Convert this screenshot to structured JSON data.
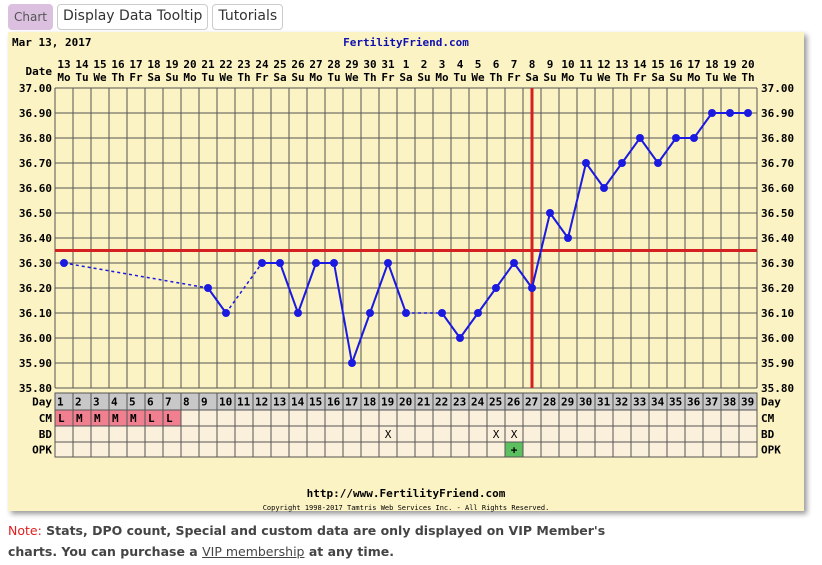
{
  "tabs": [
    {
      "label": "Chart",
      "active": true
    },
    {
      "label": "Display Data Tooltip"
    },
    {
      "label": "Tutorials"
    }
  ],
  "chart_header": {
    "date": "Mar 13, 2017",
    "site": "FertilityFriend.com",
    "date_label": "Date",
    "day_label": "Day",
    "cm_label": "CM",
    "bd_label": "BD",
    "opk_label": "OPK"
  },
  "footer": {
    "url": "http://www.FertilityFriend.com",
    "copyright": "Copyright 1998-2017 Tamtris Web Services Inc. - All Rights Reserved."
  },
  "note": {
    "prefix": "Note:",
    "text1": " Stats, DPO count, Special and custom data are only displayed on VIP Member's charts. You can purchase a ",
    "link": "VIP membership",
    "text2": " at any time."
  },
  "colors": {
    "line": "#1a1ae0",
    "coverline": "#d42020",
    "cm": "#f08090",
    "opk": "#5cc060",
    "panel": "#fcf3c4"
  },
  "chart_data": {
    "type": "line",
    "title": "FertilityFriend.com",
    "ylim": [
      35.8,
      37.0
    ],
    "yticks": [
      "37.00",
      "36.90",
      "36.80",
      "36.70",
      "36.60",
      "36.50",
      "36.40",
      "36.30",
      "36.20",
      "36.10",
      "36.00",
      "35.90",
      "35.80"
    ],
    "dates": [
      "13",
      "14",
      "15",
      "16",
      "17",
      "18",
      "19",
      "20",
      "21",
      "22",
      "23",
      "24",
      "25",
      "26",
      "27",
      "28",
      "29",
      "30",
      "31",
      "1",
      "2",
      "3",
      "4",
      "5",
      "6",
      "7",
      "8",
      "9",
      "10",
      "11",
      "12",
      "13",
      "14",
      "15",
      "16",
      "17",
      "18",
      "19",
      "20"
    ],
    "weekdays": [
      "Mo",
      "Tu",
      "We",
      "Th",
      "Fr",
      "Sa",
      "Su",
      "Mo",
      "Tu",
      "We",
      "Th",
      "Fr",
      "Sa",
      "Su",
      "Mo",
      "Tu",
      "We",
      "Th",
      "Fr",
      "Sa",
      "Su",
      "Mo",
      "Tu",
      "We",
      "Th",
      "Fr",
      "Sa",
      "Su",
      "Mo",
      "Tu",
      "We",
      "Th",
      "Fr",
      "Sa",
      "Su",
      "Mo",
      "Tu",
      "We",
      "Th"
    ],
    "days": [
      1,
      2,
      3,
      4,
      5,
      6,
      7,
      8,
      9,
      10,
      11,
      12,
      13,
      14,
      15,
      16,
      17,
      18,
      19,
      20,
      21,
      22,
      23,
      24,
      25,
      26,
      27,
      28,
      29,
      30,
      31,
      32,
      33,
      34,
      35,
      36,
      37,
      38,
      39
    ],
    "temps": [
      36.3,
      null,
      null,
      null,
      null,
      null,
      null,
      null,
      36.2,
      36.1,
      null,
      36.3,
      36.3,
      36.1,
      36.3,
      36.3,
      35.9,
      36.1,
      36.3,
      36.1,
      null,
      36.1,
      36.0,
      36.1,
      36.2,
      36.3,
      36.2,
      36.5,
      36.4,
      36.7,
      36.6,
      36.7,
      36.8,
      36.7,
      36.8,
      36.8,
      36.9,
      36.9,
      36.9
    ],
    "coverline": 36.35,
    "ovulation_day": 27,
    "cm": {
      "1": "L",
      "2": "M",
      "3": "M",
      "4": "M",
      "5": "M",
      "6": "L",
      "7": "L"
    },
    "bd": {
      "19": "X",
      "25": "X",
      "26": "X"
    },
    "opk": {
      "26": "+"
    }
  }
}
